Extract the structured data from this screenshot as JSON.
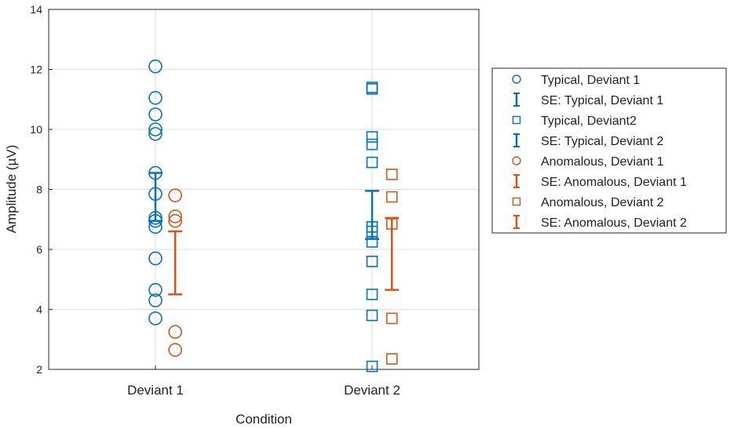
{
  "chart_data": {
    "type": "scatter",
    "xlabel": "Condition",
    "ylabel": "Amplitude (µV)",
    "categories": [
      "Deviant 1",
      "Deviant 2"
    ],
    "ylim": [
      2,
      14
    ],
    "yticks": [
      "2",
      "4",
      "6",
      "8",
      "10",
      "12",
      "14"
    ],
    "grid": true,
    "legend_position": "right",
    "series": [
      {
        "name": "Typical, Deviant 1",
        "marker": "circle",
        "color": "#0072BD",
        "category": "Deviant 1",
        "offset": 0,
        "values": [
          12.1,
          11.05,
          10.5,
          10.0,
          9.85,
          8.55,
          7.85,
          7.05,
          6.95,
          6.75,
          5.7,
          4.65,
          4.3,
          3.7
        ]
      },
      {
        "name": "SE: Typical, Deviant 1",
        "type": "errorbar",
        "color": "#0072BD",
        "category": "Deviant 1",
        "offset": 0,
        "low": 6.95,
        "high": 8.55
      },
      {
        "name": "Typical, Deviant2",
        "marker": "square",
        "color": "#0072BD",
        "category": "Deviant 2",
        "offset": 0,
        "values": [
          11.4,
          11.35,
          9.75,
          9.5,
          8.9,
          6.75,
          6.6,
          6.25,
          5.6,
          4.5,
          3.8,
          2.1
        ]
      },
      {
        "name": "SE: Typical, Deviant 2",
        "type": "errorbar",
        "color": "#0072BD",
        "category": "Deviant 2",
        "offset": 0,
        "low": 6.35,
        "high": 7.95
      },
      {
        "name": "Anomalous, Deviant 1",
        "marker": "circle",
        "color": "#D95319",
        "category": "Deviant 1",
        "offset": 0.1,
        "values": [
          7.8,
          7.1,
          6.95,
          3.25,
          2.65
        ]
      },
      {
        "name": "SE: Anomalous, Deviant 1",
        "type": "errorbar",
        "color": "#D95319",
        "category": "Deviant 1",
        "offset": 0.1,
        "low": 4.5,
        "high": 6.6
      },
      {
        "name": "Anomalous, Deviant 2",
        "marker": "square",
        "color": "#D95319",
        "category": "Deviant 2",
        "offset": 0.1,
        "values": [
          8.5,
          7.75,
          6.85,
          3.7,
          2.35
        ]
      },
      {
        "name": "SE: Anomalous, Deviant 2",
        "type": "errorbar",
        "color": "#D95319",
        "category": "Deviant 2",
        "offset": 0.1,
        "low": 4.65,
        "high": 7.05
      }
    ]
  }
}
